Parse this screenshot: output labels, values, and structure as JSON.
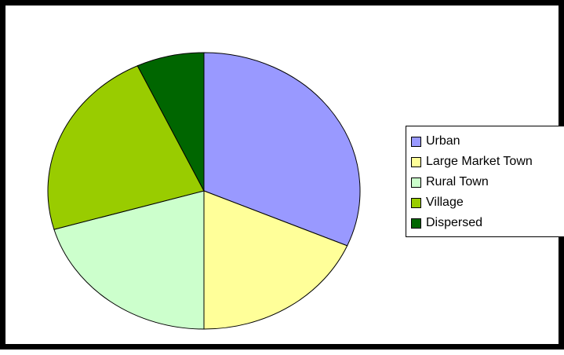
{
  "chart_data": {
    "type": "pie",
    "title": "",
    "legend_position": "right",
    "slices": [
      {
        "label": "Urban",
        "value": 31.5,
        "color": "#9999FF"
      },
      {
        "label": "Large Market Town",
        "value": 18.5,
        "color": "#FFFF99"
      },
      {
        "label": "Rural Town",
        "value": 20.5,
        "color": "#CCFFCC"
      },
      {
        "label": "Village",
        "value": 22.5,
        "color": "#99CC00"
      },
      {
        "label": "Dispersed",
        "value": 7.0,
        "color": "#006600"
      }
    ]
  }
}
